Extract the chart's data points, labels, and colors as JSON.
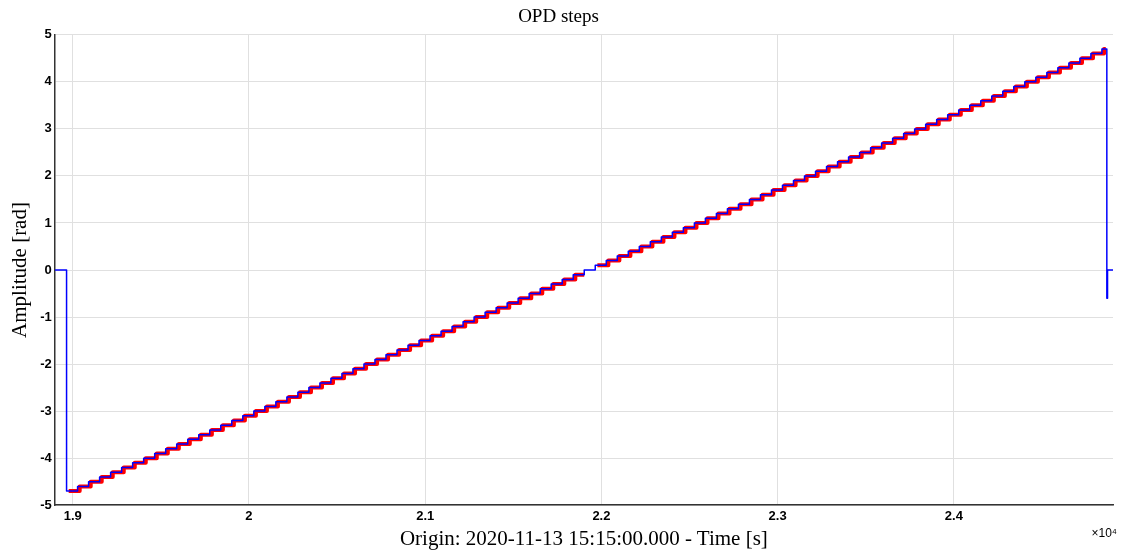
{
  "chart_data": {
    "type": "step",
    "title": "OPD steps",
    "xlabel": "Origin: 2020-11-13 15:15:00.000 - Time [s]",
    "ylabel": "Amplitude [rad]",
    "annotations": [
      "×10⁴"
    ],
    "xlim": [
      1.8898,
      2.4903
    ],
    "xticks": [
      1.9,
      2,
      2.1,
      2.2,
      2.3,
      2.4
    ],
    "ylim": [
      -5,
      5
    ],
    "yticks": [
      -5,
      -4,
      -3,
      -2,
      -1,
      0,
      1,
      2,
      3,
      4,
      5
    ],
    "grid": true,
    "marker": "none",
    "series": [
      {
        "color": "#0000ff",
        "x": [
          1.8898,
          1.896,
          1.8965,
          1.90275,
          1.909,
          1.91525,
          1.9215,
          1.92775,
          1.934,
          1.94025,
          1.9465,
          1.95275,
          1.959,
          1.96525,
          1.9715,
          1.97775,
          1.984,
          1.99025,
          1.9965,
          2.00275,
          2.009,
          2.01525,
          2.0215,
          2.02775,
          2.034,
          2.04025,
          2.0465,
          2.05275,
          2.059,
          2.06525,
          2.0715,
          2.07775,
          2.084,
          2.09025,
          2.0965,
          2.10275,
          2.109,
          2.11525,
          2.1215,
          2.12775,
          2.134,
          2.14025,
          2.1465,
          2.15275,
          2.159,
          2.16525,
          2.1715,
          2.17775,
          2.184,
          2.19025,
          2.1965,
          2.20275,
          2.209,
          2.21525,
          2.2215,
          2.22775,
          2.234,
          2.24025,
          2.2465,
          2.25275,
          2.259,
          2.26525,
          2.2715,
          2.27775,
          2.284,
          2.29025,
          2.2965,
          2.30275,
          2.309,
          2.31525,
          2.3215,
          2.32775,
          2.334,
          2.34025,
          2.3465,
          2.35275,
          2.359,
          2.36525,
          2.3715,
          2.37775,
          2.384,
          2.39025,
          2.3965,
          2.40275,
          2.409,
          2.41525,
          2.4215,
          2.42775,
          2.434,
          2.44025,
          2.4465,
          2.45275,
          2.459,
          2.46525,
          2.4715,
          2.47775,
          2.484,
          2.4865,
          2.4868,
          2.4872,
          2.4903
        ],
        "values": [
          0,
          0,
          -4.7,
          -4.6,
          -4.5,
          -4.4,
          -4.3,
          -4.2,
          -4.1,
          -4,
          -3.9,
          -3.8,
          -3.7,
          -3.6,
          -3.5,
          -3.4,
          -3.3,
          -3.2,
          -3.1,
          -3,
          -2.9,
          -2.8,
          -2.7,
          -2.6,
          -2.5,
          -2.4,
          -2.3,
          -2.2,
          -2.1,
          -2,
          -1.9,
          -1.8,
          -1.7,
          -1.6,
          -1.5,
          -1.4,
          -1.3,
          -1.2,
          -1.1,
          -1,
          -0.9,
          -0.8,
          -0.7,
          -0.6,
          -0.5,
          -0.4,
          -0.3,
          -0.2,
          -0.1,
          0,
          0.1,
          0.2,
          0.3,
          0.4,
          0.5,
          0.6,
          0.7,
          0.8,
          0.9,
          1,
          1.1,
          1.2,
          1.3,
          1.4,
          1.5,
          1.6,
          1.7,
          1.8,
          1.9,
          2,
          2.1,
          2.2,
          2.3,
          2.4,
          2.5,
          2.6,
          2.7,
          2.8,
          2.9,
          3,
          3.1,
          3.2,
          3.3,
          3.4,
          3.5,
          3.6,
          3.7,
          3.8,
          3.9,
          4,
          4.1,
          4.2,
          4.3,
          4.4,
          4.5,
          4.6,
          4.7,
          4.7,
          -0.6,
          0,
          0
        ]
      },
      {
        "color": "#ff0000",
        "x": [
          1.8977,
          1.90395,
          1.9102,
          1.91645,
          1.9227,
          1.92895,
          1.9352,
          1.94145,
          1.9477,
          1.95395,
          1.9602,
          1.96645,
          1.9727,
          1.97895,
          1.9852,
          1.99145,
          1.9977,
          2.00395,
          2.0102,
          2.01645,
          2.0227,
          2.02895,
          2.0352,
          2.04145,
          2.0477,
          2.05395,
          2.0602,
          2.06645,
          2.0727,
          2.07895,
          2.0852,
          2.09145,
          2.0977,
          2.10395,
          2.1102,
          2.11645,
          2.1227,
          2.12895,
          2.1352,
          2.14145,
          2.1477,
          2.15395,
          2.1602,
          2.16645,
          2.1727,
          2.17895,
          2.1852,
          2.19025,
          2.19145,
          2.1977,
          2.20395,
          2.2102,
          2.21645,
          2.2227,
          2.22895,
          2.2352,
          2.24145,
          2.2477,
          2.25395,
          2.2602,
          2.26645,
          2.2727,
          2.27895,
          2.2852,
          2.29145,
          2.2977,
          2.30395,
          2.3102,
          2.31645,
          2.3227,
          2.32895,
          2.3352,
          2.34145,
          2.3477,
          2.35395,
          2.3602,
          2.36645,
          2.3727,
          2.37895,
          2.3852,
          2.39145,
          2.3977,
          2.40395,
          2.4102,
          2.41645,
          2.4227,
          2.42895,
          2.4352,
          2.44145,
          2.4477,
          2.45395,
          2.4602,
          2.46645,
          2.4727,
          2.47895,
          2.4852,
          2.4862
        ],
        "values": [
          -4.7,
          -4.6,
          -4.5,
          -4.4,
          -4.3,
          -4.2,
          -4.1,
          -4,
          -3.9,
          -3.8,
          -3.7,
          -3.6,
          -3.5,
          -3.4,
          -3.3,
          -3.2,
          -3.1,
          -3,
          -2.9,
          -2.8,
          -2.7,
          -2.6,
          -2.5,
          -2.4,
          -2.3,
          -2.2,
          -2.1,
          -2,
          -1.9,
          -1.8,
          -1.7,
          -1.6,
          -1.5,
          -1.4,
          -1.3,
          -1.2,
          -1.1,
          -1,
          -0.9,
          -0.8,
          -0.7,
          -0.6,
          -0.5,
          -0.4,
          -0.3,
          -0.2,
          -0.1,
          -0.1,
          null,
          0.1,
          0.2,
          0.3,
          0.4,
          0.5,
          0.6,
          0.7,
          0.8,
          0.9,
          1,
          1.1,
          1.2,
          1.3,
          1.4,
          1.5,
          1.6,
          1.7,
          1.8,
          1.9,
          2,
          2.1,
          2.2,
          2.3,
          2.4,
          2.5,
          2.6,
          2.7,
          2.8,
          2.9,
          3,
          3.1,
          3.2,
          3.3,
          3.4,
          3.5,
          3.6,
          3.7,
          3.8,
          3.9,
          4,
          4.1,
          4.2,
          4.3,
          4.4,
          4.5,
          4.6,
          4.7,
          4.7
        ]
      }
    ]
  }
}
